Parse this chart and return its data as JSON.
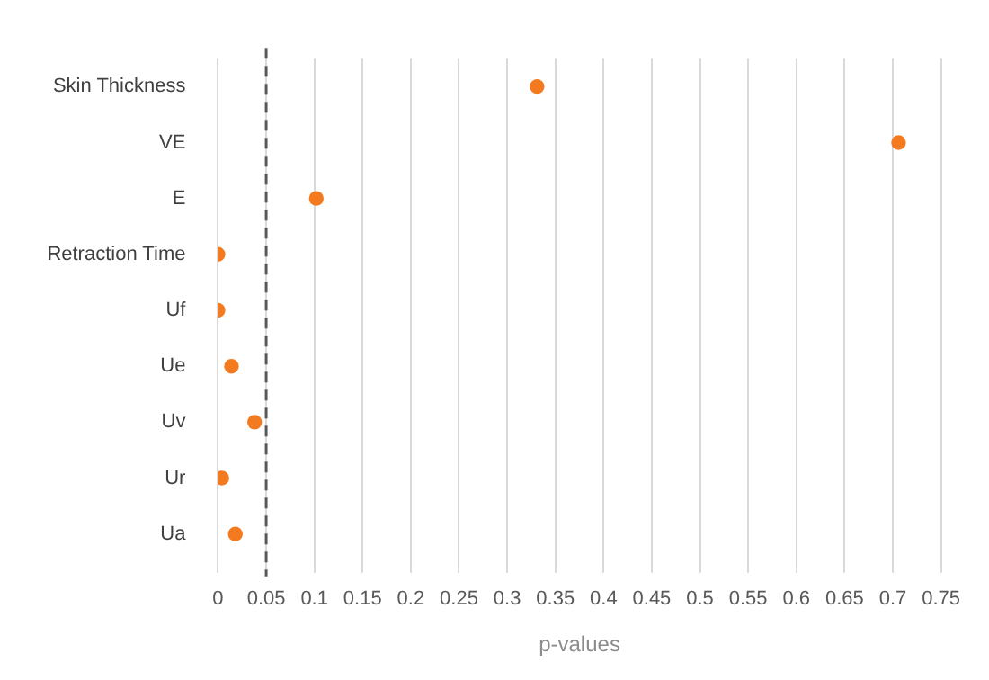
{
  "chart_data": {
    "type": "scatter",
    "xlabel": "p-values",
    "categories": [
      "Skin Thickness",
      "VE",
      "E",
      "Retraction Time",
      "Uf",
      "Ue",
      "Uv",
      "Ur",
      "Ua"
    ],
    "series": [
      {
        "color": "#f47a20",
        "values": [
          0.331,
          0.706,
          0.102,
          0.0,
          0.0,
          0.014,
          0.038,
          0.004,
          0.018
        ]
      }
    ],
    "orientation": "horizontal",
    "xlim": [
      0,
      0.75
    ],
    "xticks": [
      0,
      0.05,
      0.1,
      0.15,
      0.2,
      0.25,
      0.3,
      0.35,
      0.4,
      0.45,
      0.5,
      0.55,
      0.6,
      0.65,
      0.7,
      0.75
    ],
    "grid": "x",
    "legend": false,
    "marker": "circle",
    "ref_lines": [
      {
        "axis": "x",
        "value": 0.05,
        "color": "#595959",
        "line_style": "dashed"
      }
    ]
  }
}
